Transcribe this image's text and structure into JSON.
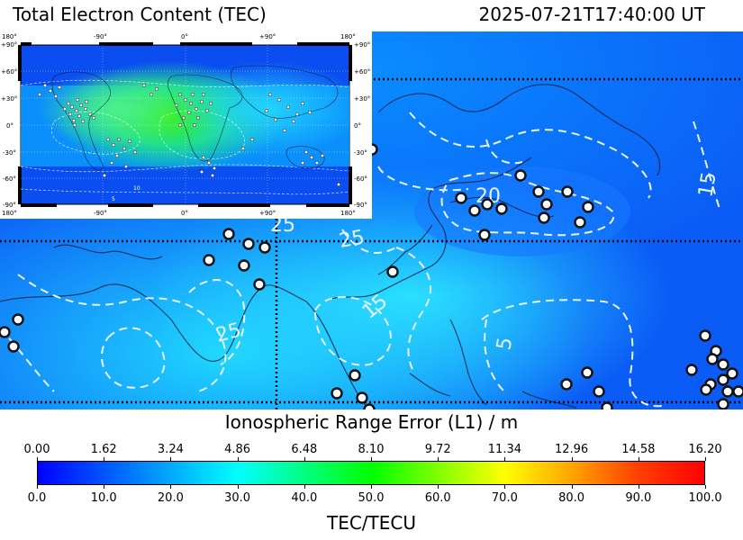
{
  "header": {
    "title": "Total Electron Content (TEC)",
    "timestamp": "2025-07-21T17:40:00 UT"
  },
  "main_map": {
    "contour_labels": [
      "20",
      "15",
      "25",
      "25",
      "25",
      "15",
      "5"
    ]
  },
  "inset_map": {
    "lon_labels": [
      "180°",
      "-90°",
      "0°",
      "+90°",
      "180°"
    ],
    "lat_labels": [
      "+90°",
      "+60°",
      "+30°",
      "0°",
      "-30°",
      "-60°",
      "-90°"
    ],
    "contour_labels": [
      "5",
      "10"
    ]
  },
  "colorbar": {
    "range_title": "Ionospheric Range Error (L1) / m",
    "range_ticks": [
      "0.00",
      "1.62",
      "3.24",
      "4.86",
      "6.48",
      "8.10",
      "9.72",
      "11.34",
      "12.96",
      "14.58",
      "16.20"
    ],
    "tec_ticks": [
      "0.0",
      "10.0",
      "20.0",
      "30.0",
      "40.0",
      "50.0",
      "60.0",
      "70.0",
      "80.0",
      "90.0",
      "100.0"
    ],
    "tec_title": "TEC/TECU",
    "tec_min": 0,
    "tec_max": 100,
    "colors": [
      "#0000ff",
      "#0055ff",
      "#00aaff",
      "#00ffff",
      "#00ff80",
      "#00ff00",
      "#80ff00",
      "#ffff00",
      "#ffa500",
      "#ff4000",
      "#ff0000"
    ]
  }
}
